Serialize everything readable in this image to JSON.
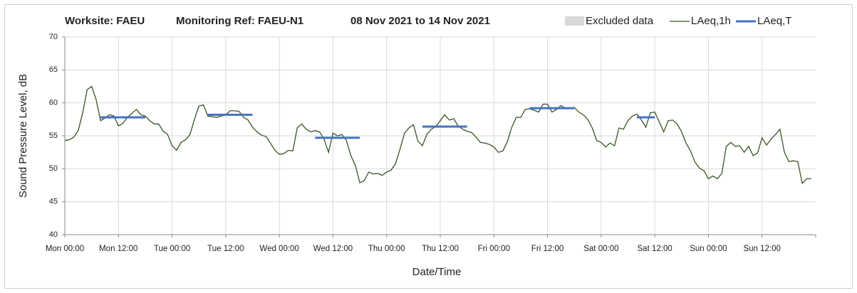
{
  "chart_data": {
    "type": "line",
    "title_parts": [
      "Worksite: FAEU",
      "Monitoring Ref: FAEU-N1",
      "08 Nov 2021 to 14 Nov 2021"
    ],
    "x_label": "Date/Time",
    "y_label": "Sound Pressure Level, dB",
    "excluded": {
      "name": "Excluded data",
      "color": "#d9d9d9"
    },
    "xlim": [
      0,
      168
    ],
    "xticks": [
      {
        "value": 0,
        "label": "Mon 00:00"
      },
      {
        "value": 12,
        "label": "Mon 12:00"
      },
      {
        "value": 24,
        "label": "Tue 00:00"
      },
      {
        "value": 36,
        "label": "Tue 12:00"
      },
      {
        "value": 48,
        "label": "Wed 00:00"
      },
      {
        "value": 60,
        "label": "Wed 12:00"
      },
      {
        "value": 72,
        "label": "Thu 00:00"
      },
      {
        "value": 84,
        "label": "Thu 12:00"
      },
      {
        "value": 96,
        "label": "Fri 00:00"
      },
      {
        "value": 108,
        "label": "Fri 12:00"
      },
      {
        "value": 120,
        "label": "Sat 00:00"
      },
      {
        "value": 132,
        "label": "Sat 12:00"
      },
      {
        "value": 144,
        "label": "Sun 00:00"
      },
      {
        "value": 156,
        "label": "Sun 12:00"
      }
    ],
    "ylim": [
      40,
      70
    ],
    "yticks": [
      40,
      45,
      50,
      55,
      60,
      65,
      70
    ],
    "grid": true,
    "x": [
      0,
      1,
      2,
      3,
      4,
      5,
      6,
      7,
      8,
      9,
      10,
      11,
      12,
      13,
      14,
      15,
      16,
      17,
      18,
      19,
      20,
      21,
      22,
      23,
      24,
      25,
      26,
      27,
      28,
      29,
      30,
      31,
      32,
      33,
      34,
      35,
      36,
      37,
      38,
      39,
      40,
      41,
      42,
      43,
      44,
      45,
      46,
      47,
      48,
      49,
      50,
      51,
      52,
      53,
      54,
      55,
      56,
      57,
      58,
      59,
      60,
      61,
      62,
      63,
      64,
      65,
      66,
      67,
      68,
      69,
      70,
      71,
      72,
      73,
      74,
      75,
      76,
      77,
      78,
      79,
      80,
      81,
      82,
      83,
      84,
      85,
      86,
      87,
      88,
      89,
      90,
      91,
      92,
      93,
      94,
      95,
      96,
      97,
      98,
      99,
      100,
      101,
      102,
      103,
      104,
      105,
      106,
      107,
      108,
      109,
      110,
      111,
      112,
      113,
      114,
      115,
      116,
      117,
      118,
      119,
      120,
      121,
      122,
      123,
      124,
      125,
      126,
      127,
      128,
      129,
      130,
      131,
      132,
      133,
      134,
      135,
      136,
      137,
      138,
      139,
      140,
      141,
      142,
      143,
      144,
      145,
      146,
      147,
      148,
      149,
      150,
      151,
      152,
      153,
      154,
      155,
      156,
      157,
      158,
      159,
      160,
      161,
      162,
      163,
      164,
      165,
      166,
      167
    ],
    "series": [
      {
        "name": "LAeq,1h",
        "color": "#375623",
        "values": [
          54.3,
          54.4,
          54.8,
          55.8,
          58.5,
          62,
          62.5,
          60.5,
          57.3,
          57.7,
          58.2,
          58,
          56.5,
          56.9,
          57.8,
          58.4,
          59,
          58.2,
          58,
          57.3,
          56.8,
          56.8,
          55.7,
          55.2,
          53.5,
          52.8,
          54,
          54.4,
          55.2,
          57.5,
          59.5,
          59.7,
          58,
          57.9,
          57.8,
          58,
          58.2,
          58.8,
          58.8,
          58.7,
          57.8,
          57.4,
          56.3,
          55.6,
          55.1,
          54.9,
          53.9,
          52.8,
          52.2,
          52.3,
          52.8,
          52.7,
          56.2,
          56.8,
          56,
          55.6,
          55.8,
          55.6,
          54.5,
          52.5,
          55.4,
          55,
          55.2,
          54.3,
          52,
          50.5,
          47.9,
          48.2,
          49.5,
          49.2,
          49.3,
          49,
          49.5,
          49.8,
          50.8,
          53,
          55.4,
          56.2,
          56.7,
          54.2,
          53.5,
          55.2,
          56,
          56.4,
          57.3,
          58.2,
          57.4,
          57.6,
          56.5,
          56,
          55.7,
          55.5,
          54.8,
          54,
          53.9,
          53.7,
          53.3,
          52.5,
          52.7,
          54.1,
          56.3,
          57.8,
          57.8,
          59,
          59.1,
          58.9,
          58.6,
          59.8,
          59.8,
          58.6,
          59,
          59.6,
          59.2,
          59.2,
          59.3,
          58.6,
          58.2,
          57.5,
          56.2,
          54.3,
          54,
          53.3,
          53.9,
          53.5,
          56.2,
          56,
          57.3,
          58,
          58.3,
          57.4,
          56.3,
          58.5,
          58.6,
          57.1,
          55.6,
          57.3,
          57.4,
          56.8,
          55.6,
          53.9,
          52.7,
          51,
          50.1,
          49.7,
          48.5,
          48.9,
          48.5,
          49.3,
          53.4,
          54,
          53.4,
          53.5,
          52.5,
          53.4,
          52,
          52.4,
          54.7,
          53.6,
          54.5,
          55.2,
          56,
          52.5,
          51.1,
          51.2,
          51.1,
          47.8,
          48.5,
          48.5
        ]
      },
      {
        "name": "LAeq,T",
        "color": "#4472c4",
        "segments": [
          {
            "x": [
              8,
              18
            ],
            "value": 57.8
          },
          {
            "x": [
              32,
              42
            ],
            "value": 58.2
          },
          {
            "x": [
              56,
              66
            ],
            "value": 54.7
          },
          {
            "x": [
              80,
              90
            ],
            "value": 56.4
          },
          {
            "x": [
              104,
              114
            ],
            "value": 59.2
          },
          {
            "x": [
              128,
              132
            ],
            "value": 57.8
          }
        ]
      }
    ]
  }
}
